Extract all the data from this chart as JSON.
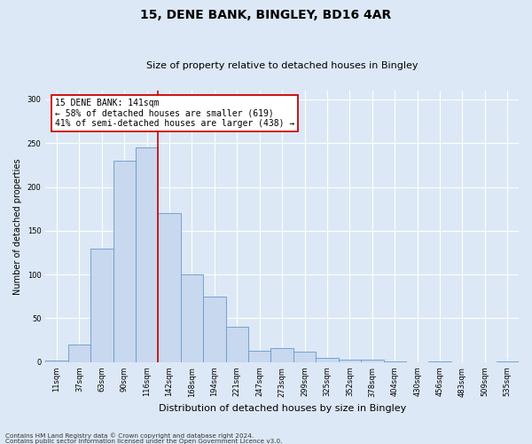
{
  "title1": "15, DENE BANK, BINGLEY, BD16 4AR",
  "title2": "Size of property relative to detached houses in Bingley",
  "xlabel": "Distribution of detached houses by size in Bingley",
  "ylabel": "Number of detached properties",
  "bar_labels": [
    "11sqm",
    "37sqm",
    "63sqm",
    "90sqm",
    "116sqm",
    "142sqm",
    "168sqm",
    "194sqm",
    "221sqm",
    "247sqm",
    "273sqm",
    "299sqm",
    "325sqm",
    "352sqm",
    "378sqm",
    "404sqm",
    "430sqm",
    "456sqm",
    "483sqm",
    "509sqm",
    "535sqm"
  ],
  "bar_values": [
    2,
    20,
    130,
    230,
    245,
    170,
    100,
    75,
    40,
    13,
    16,
    12,
    5,
    3,
    3,
    1,
    0,
    1,
    0,
    0,
    1
  ],
  "bar_color": "#c8d8ee",
  "bar_edge_color": "#6699cc",
  "vline_color": "#cc0000",
  "vline_x_index": 5,
  "annotation_title": "15 DENE BANK: 141sqm",
  "annotation_line1": "← 58% of detached houses are smaller (619)",
  "annotation_line2": "41% of semi-detached houses are larger (438) →",
  "ylim": [
    0,
    310
  ],
  "yticks": [
    0,
    50,
    100,
    150,
    200,
    250,
    300
  ],
  "footnote1": "Contains HM Land Registry data © Crown copyright and database right 2024.",
  "footnote2": "Contains public sector information licensed under the Open Government Licence v3.0.",
  "fig_bg_color": "#dce8f5",
  "plot_bg_color": "#dce8f5"
}
